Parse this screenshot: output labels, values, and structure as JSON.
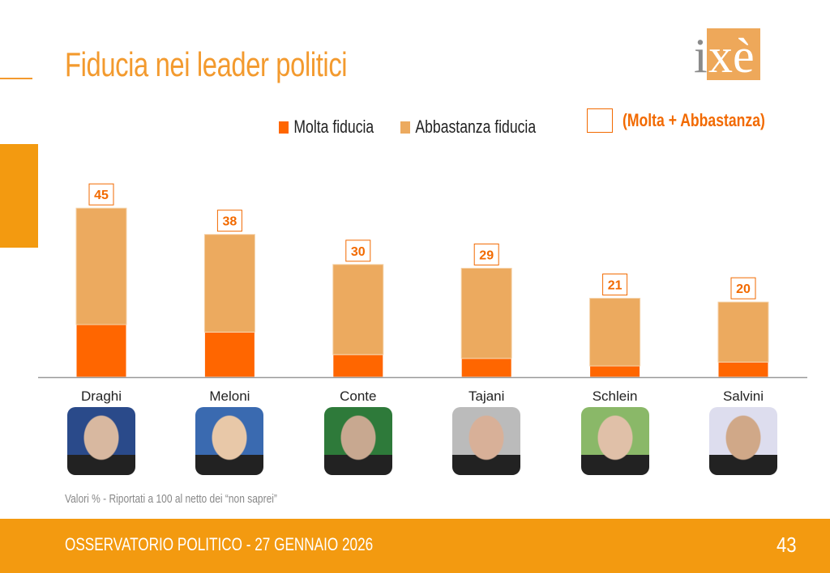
{
  "title": "Fiducia nei leader politici",
  "logo_text": "ixè",
  "legend": {
    "molta": "Molta fiducia",
    "abbastanza": "Abbastanza fiducia",
    "total": "(Molta + Abbastanza)"
  },
  "colors": {
    "molta": "#ff6600",
    "abbastanza": "#ecaa5f",
    "accent": "#f39a10",
    "total_label": "#f26a00"
  },
  "chart_data": {
    "type": "bar",
    "stacked": true,
    "categories": [
      "Draghi",
      "Meloni",
      "Conte",
      "Tajani",
      "Schlein",
      "Salvini"
    ],
    "series": [
      {
        "name": "Molta fiducia",
        "values": [
          14,
          12,
          6,
          5,
          3,
          4
        ]
      },
      {
        "name": "Abbastanza fiducia",
        "values": [
          31,
          26,
          24,
          24,
          18,
          16
        ]
      }
    ],
    "totals": [
      45,
      38,
      30,
      29,
      21,
      20
    ],
    "ylim": [
      0,
      50
    ],
    "grid": false,
    "legend_position": "top"
  },
  "photos": [
    "draghi-photo",
    "meloni-photo",
    "conte-photo",
    "tajani-photo",
    "schlein-photo",
    "salvini-photo"
  ],
  "footnote": "Valori % - Riportati a 100 al netto dei “non saprei”",
  "footer": {
    "text": "OSSERVATORIO POLITICO - 27 GENNAIO 2026",
    "page": "43"
  }
}
